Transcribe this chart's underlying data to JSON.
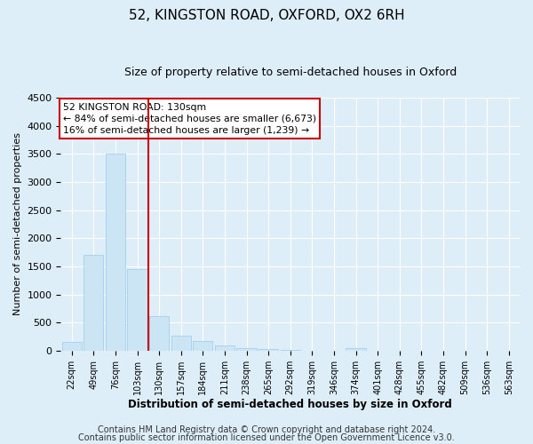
{
  "title": "52, KINGSTON ROAD, OXFORD, OX2 6RH",
  "subtitle": "Size of property relative to semi-detached houses in Oxford",
  "xlabel": "Distribution of semi-detached houses by size in Oxford",
  "ylabel": "Number of semi-detached properties",
  "bar_labels": [
    "22sqm",
    "49sqm",
    "76sqm",
    "103sqm",
    "130sqm",
    "157sqm",
    "184sqm",
    "211sqm",
    "238sqm",
    "265sqm",
    "292sqm",
    "319sqm",
    "346sqm",
    "374sqm",
    "401sqm",
    "428sqm",
    "455sqm",
    "482sqm",
    "509sqm",
    "536sqm",
    "563sqm"
  ],
  "bar_values": [
    150,
    1700,
    3500,
    1450,
    620,
    270,
    170,
    100,
    50,
    30,
    10,
    5,
    2,
    40,
    0,
    0,
    0,
    0,
    0,
    0,
    0
  ],
  "bar_color": "#cce5f5",
  "bar_edge_color": "#9dc8e8",
  "vline_color": "#cc0000",
  "annotation_line1": "52 KINGSTON ROAD: 130sqm",
  "annotation_line2": "← 84% of semi-detached houses are smaller (6,673)",
  "annotation_line3": "16% of semi-detached houses are larger (1,239) →",
  "ylim": [
    0,
    4500
  ],
  "yticks": [
    0,
    500,
    1000,
    1500,
    2000,
    2500,
    3000,
    3500,
    4000,
    4500
  ],
  "footer_line1": "Contains HM Land Registry data © Crown copyright and database right 2024.",
  "footer_line2": "Contains public sector information licensed under the Open Government Licence v3.0.",
  "bg_color": "#deeef8",
  "plot_bg_color": "#deeef8",
  "grid_color": "#ffffff",
  "title_fontsize": 11,
  "subtitle_fontsize": 9,
  "footer_fontsize": 7
}
